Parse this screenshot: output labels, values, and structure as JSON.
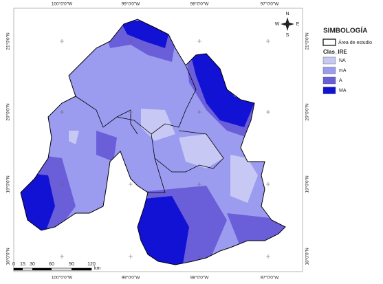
{
  "top_labels": [
    "100°0'0\"W",
    "99°0'0\"W",
    "98°0'0\"W",
    "97°0'0\"W"
  ],
  "bottom_labels": [
    "100°0'0\"W",
    "99°0'0\"W",
    "98°0'0\"W",
    "97°0'0\"W"
  ],
  "left_labels": [
    "21°0'0\"N",
    "20°0'0\"N",
    "19°0'0\"N",
    "18°0'0\"N"
  ],
  "right_labels": [
    "21°0'0\"N",
    "20°0'0\"N",
    "19°0'0\"N",
    "18°0'0\"N"
  ],
  "compass": {
    "north": "N",
    "south": "S",
    "west": "W",
    "east": "E"
  },
  "scale": {
    "labels": [
      "0",
      "15",
      "30",
      "60",
      "90",
      "120"
    ],
    "unit": "km"
  },
  "legend": {
    "title": "SIMBOLOGÍA",
    "outline_label": "Área de estudio",
    "class_title": "Clas_IRE",
    "classes": [
      {
        "name": "NA",
        "color": "#c8c8f5"
      },
      {
        "name": "mA",
        "color": "#9b9bef"
      },
      {
        "name": "A",
        "color": "#6a5ed9"
      },
      {
        "name": "MA",
        "color": "#1212d4"
      }
    ]
  }
}
